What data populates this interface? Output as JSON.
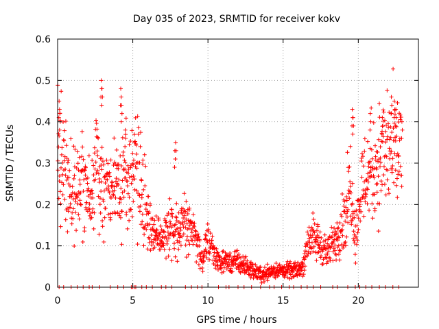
{
  "chart_data": {
    "type": "scatter",
    "title": "Day 035 of 2023, SRMTID for receiver kokv",
    "xlabel": "GPS time / hours",
    "ylabel": "SRMTID / TECUs",
    "xlim": [
      0,
      24
    ],
    "ylim": [
      0,
      0.6
    ],
    "grid": true,
    "marker": "+",
    "color": "#ff0000",
    "x_ticks": [
      {
        "value": 0,
        "label": "0"
      },
      {
        "value": 5,
        "label": "5"
      },
      {
        "value": 10,
        "label": "10"
      },
      {
        "value": 15,
        "label": "15"
      },
      {
        "value": 20,
        "label": "20"
      }
    ],
    "y_ticks": [
      {
        "value": 0,
        "label": "0"
      },
      {
        "value": 0.1,
        "label": "0.1"
      },
      {
        "value": 0.2,
        "label": "0.2"
      },
      {
        "value": 0.3,
        "label": "0.3"
      },
      {
        "value": 0.4,
        "label": "0.4"
      },
      {
        "value": 0.5,
        "label": "0.5"
      },
      {
        "value": 0.6,
        "label": "0.6"
      }
    ],
    "trend": [
      [
        0.0,
        0.36
      ],
      [
        0.3,
        0.3
      ],
      [
        0.8,
        0.24
      ],
      [
        1.2,
        0.22
      ],
      [
        1.8,
        0.25
      ],
      [
        2.2,
        0.2
      ],
      [
        2.6,
        0.3
      ],
      [
        3.0,
        0.22
      ],
      [
        3.4,
        0.24
      ],
      [
        3.9,
        0.25
      ],
      [
        4.3,
        0.28
      ],
      [
        4.8,
        0.26
      ],
      [
        5.2,
        0.3
      ],
      [
        5.5,
        0.25
      ],
      [
        5.9,
        0.18
      ],
      [
        6.4,
        0.13
      ],
      [
        7.0,
        0.12
      ],
      [
        7.5,
        0.14
      ],
      [
        8.0,
        0.15
      ],
      [
        8.6,
        0.16
      ],
      [
        9.2,
        0.12
      ],
      [
        9.6,
        0.07
      ],
      [
        10.0,
        0.11
      ],
      [
        10.5,
        0.07
      ],
      [
        11.2,
        0.06
      ],
      [
        12.0,
        0.06
      ],
      [
        13.0,
        0.04
      ],
      [
        13.6,
        0.03
      ],
      [
        14.2,
        0.04
      ],
      [
        15.0,
        0.04
      ],
      [
        15.8,
        0.04
      ],
      [
        16.3,
        0.05
      ],
      [
        16.7,
        0.12
      ],
      [
        17.3,
        0.11
      ],
      [
        18.0,
        0.08
      ],
      [
        18.6,
        0.13
      ],
      [
        19.2,
        0.18
      ],
      [
        19.5,
        0.27
      ],
      [
        19.8,
        0.12
      ],
      [
        20.2,
        0.24
      ],
      [
        20.7,
        0.28
      ],
      [
        21.3,
        0.3
      ],
      [
        21.8,
        0.33
      ],
      [
        22.3,
        0.33
      ],
      [
        22.8,
        0.32
      ]
    ],
    "x_range_data": [
      0.0,
      22.9
    ],
    "spikes": [
      [
        0.1,
        0.45
      ],
      [
        0.15,
        0.42
      ],
      [
        2.9,
        0.5
      ],
      [
        2.95,
        0.48
      ],
      [
        4.2,
        0.48
      ],
      [
        4.25,
        0.44
      ],
      [
        4.5,
        0.38
      ],
      [
        7.8,
        0.33
      ],
      [
        7.85,
        0.35
      ],
      [
        19.6,
        0.43
      ],
      [
        19.65,
        0.41
      ],
      [
        20.8,
        0.42
      ],
      [
        21.6,
        0.41
      ],
      [
        22.2,
        0.46
      ],
      [
        22.4,
        0.45
      ],
      [
        22.5,
        0.43
      ],
      [
        22.9,
        0.4
      ]
    ],
    "zero_ticks": [
      0.1,
      0.4,
      0.9,
      1.3,
      1.7,
      2.1,
      2.3,
      2.8,
      3.5,
      4.0,
      4.4,
      4.9,
      5.0,
      5.1,
      5.2,
      5.6,
      5.9,
      6.3,
      6.9,
      7.2,
      7.6,
      8.5,
      8.9,
      9.3,
      9.6,
      10.7,
      11.2,
      11.4,
      12.0,
      12.4,
      12.9,
      13.5,
      14.1,
      14.4,
      14.9,
      15.4,
      15.7,
      16.2,
      16.6,
      17.0,
      17.5,
      18.3,
      18.6,
      19.3,
      19.8,
      20.1,
      20.5,
      20.9,
      21.4,
      21.8,
      22.3,
      22.7
    ]
  }
}
